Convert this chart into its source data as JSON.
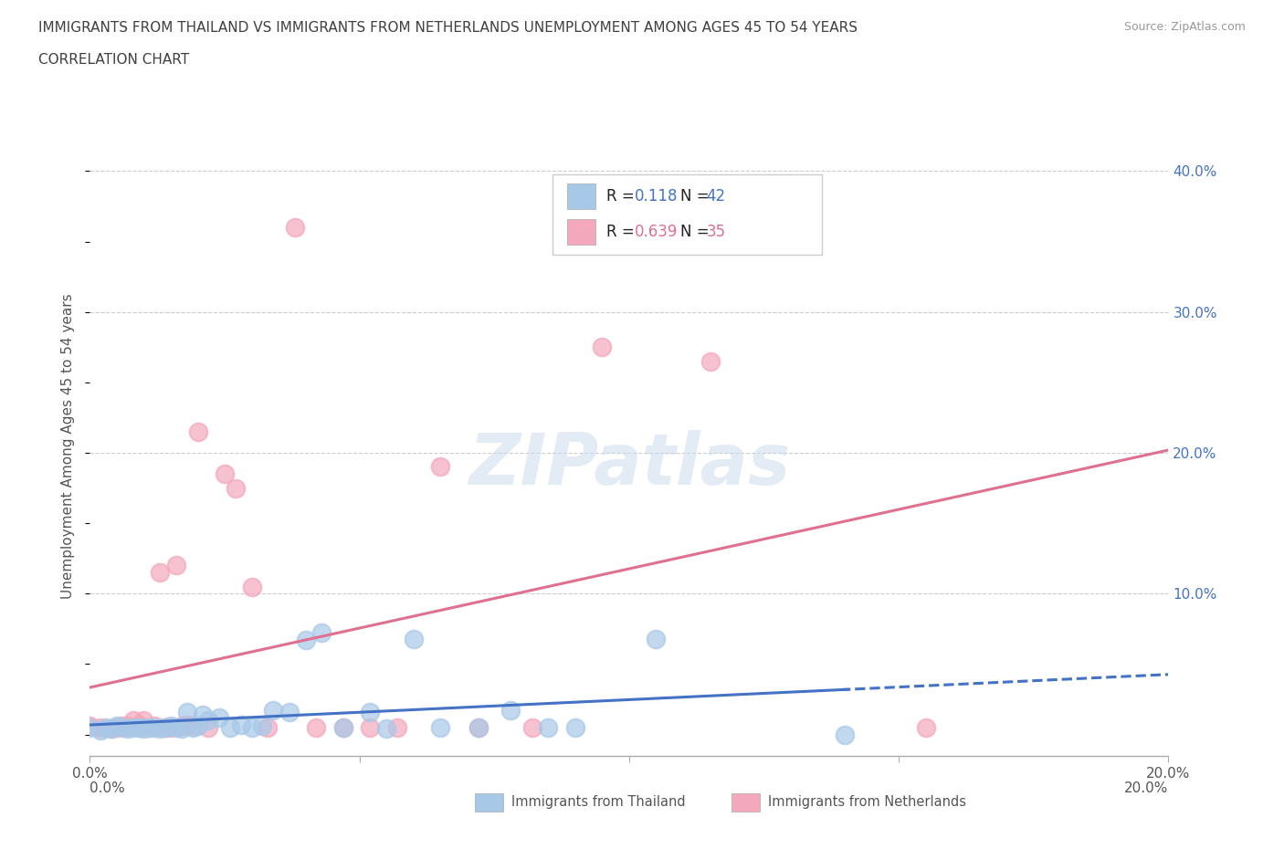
{
  "title_line1": "IMMIGRANTS FROM THAILAND VS IMMIGRANTS FROM NETHERLANDS UNEMPLOYMENT AMONG AGES 45 TO 54 YEARS",
  "title_line2": "CORRELATION CHART",
  "source_text": "Source: ZipAtlas.com",
  "ylabel": "Unemployment Among Ages 45 to 54 years",
  "watermark": "ZIPatlas",
  "xlim": [
    0.0,
    0.2
  ],
  "ylim": [
    -0.015,
    0.425
  ],
  "thailand_color": "#a8c8e8",
  "netherlands_color": "#f4a8bc",
  "thailand_line_color": "#4472c4",
  "netherlands_line_color": "#e07090",
  "R_thailand": 0.118,
  "N_thailand": 42,
  "R_netherlands": 0.639,
  "N_netherlands": 35,
  "legend_label_thailand": "Immigrants from Thailand",
  "legend_label_netherlands": "Immigrants from Netherlands",
  "background_color": "#ffffff",
  "grid_color": "#cccccc",
  "title_color": "#404040",
  "right_yaxis_color": "#4472c4",
  "thailand_x": [
    0.0,
    0.002,
    0.003,
    0.004,
    0.005,
    0.006,
    0.007,
    0.008,
    0.009,
    0.01,
    0.011,
    0.012,
    0.013,
    0.014,
    0.015,
    0.016,
    0.017,
    0.018,
    0.019,
    0.02,
    0.021,
    0.022,
    0.024,
    0.026,
    0.028,
    0.03,
    0.032,
    0.034,
    0.037,
    0.04,
    0.043,
    0.047,
    0.052,
    0.055,
    0.06,
    0.065,
    0.072,
    0.078,
    0.085,
    0.09,
    0.105,
    0.14
  ],
  "thailand_y": [
    0.005,
    0.003,
    0.005,
    0.004,
    0.006,
    0.005,
    0.004,
    0.005,
    0.005,
    0.004,
    0.005,
    0.005,
    0.004,
    0.005,
    0.006,
    0.005,
    0.004,
    0.016,
    0.005,
    0.006,
    0.014,
    0.01,
    0.012,
    0.005,
    0.007,
    0.005,
    0.006,
    0.017,
    0.016,
    0.067,
    0.072,
    0.005,
    0.016,
    0.004,
    0.068,
    0.005,
    0.005,
    0.017,
    0.005,
    0.005,
    0.068,
    0.0
  ],
  "netherlands_x": [
    0.0,
    0.002,
    0.004,
    0.005,
    0.006,
    0.007,
    0.008,
    0.009,
    0.01,
    0.011,
    0.012,
    0.013,
    0.014,
    0.015,
    0.016,
    0.017,
    0.018,
    0.019,
    0.02,
    0.022,
    0.025,
    0.027,
    0.03,
    0.033,
    0.038,
    0.042,
    0.047,
    0.052,
    0.057,
    0.065,
    0.072,
    0.082,
    0.095,
    0.115,
    0.155
  ],
  "netherlands_y": [
    0.006,
    0.005,
    0.004,
    0.005,
    0.006,
    0.006,
    0.01,
    0.007,
    0.01,
    0.005,
    0.006,
    0.115,
    0.005,
    0.005,
    0.12,
    0.006,
    0.007,
    0.006,
    0.215,
    0.005,
    0.185,
    0.175,
    0.105,
    0.005,
    0.36,
    0.005,
    0.005,
    0.005,
    0.005,
    0.19,
    0.005,
    0.005,
    0.275,
    0.265,
    0.005
  ],
  "yticks": [
    0.1,
    0.2,
    0.3,
    0.4
  ],
  "ytick_labels": [
    "10.0%",
    "20.0%",
    "30.0%",
    "40.0%"
  ],
  "xtick_positions": [
    0.0,
    0.05,
    0.1,
    0.15,
    0.2
  ],
  "xtick_labels_show": [
    "0.0%",
    "",
    "",
    "",
    "20.0%"
  ]
}
